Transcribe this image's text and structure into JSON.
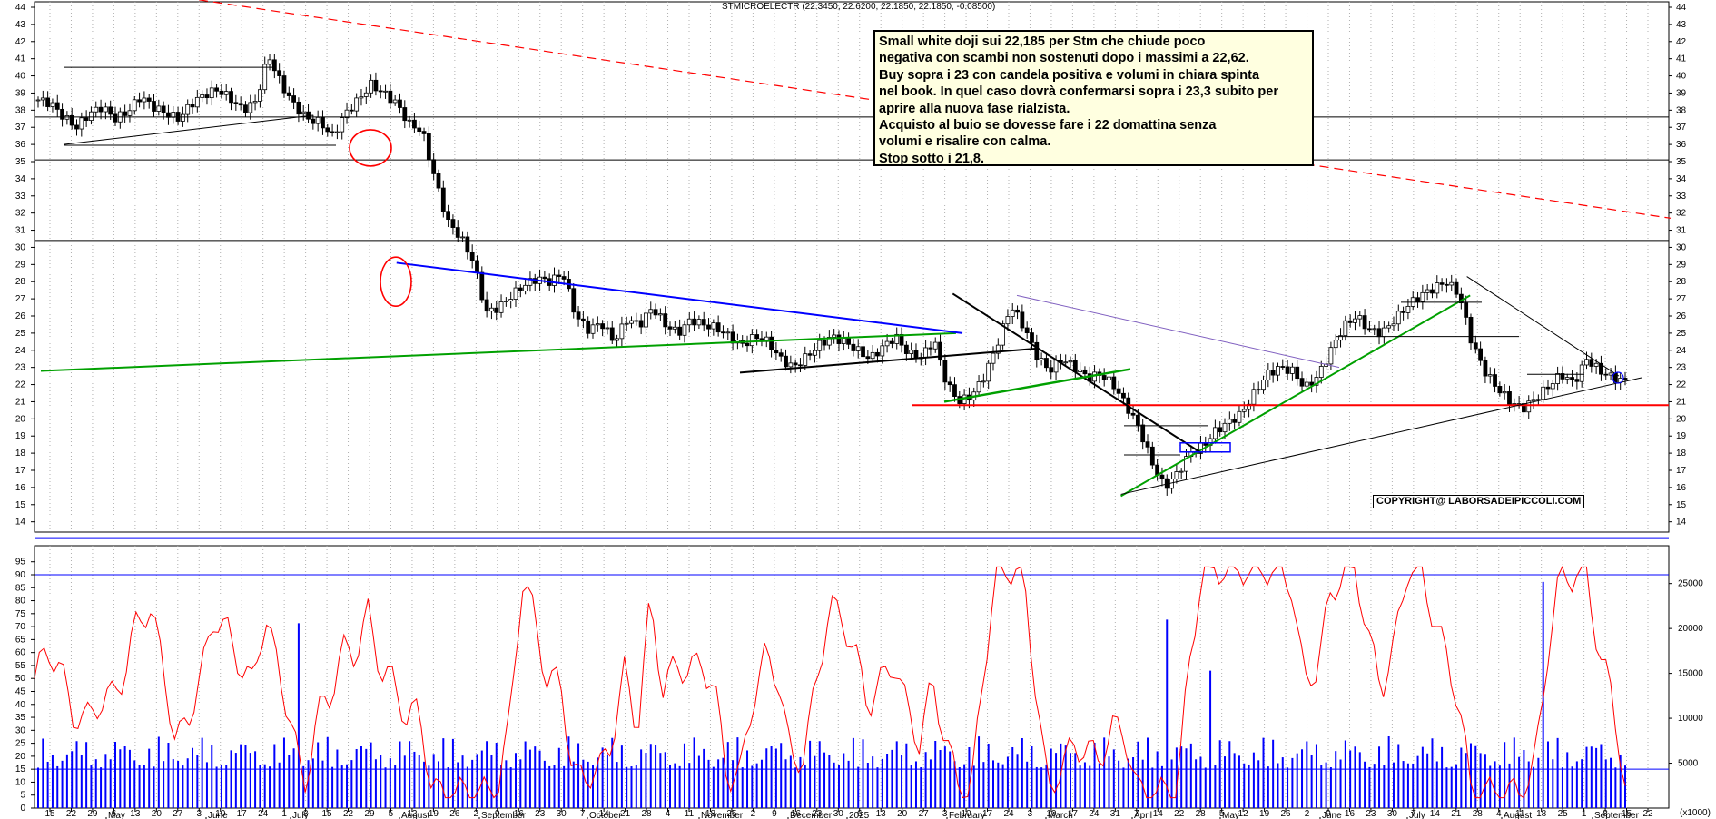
{
  "header": "STMICROELECTR (22.3450, 22.6200, 22.1850, 22.1850, -0.08500)",
  "annotation": [
    "Small white doji sui 22,185 per  Stm che chiude poco",
    "negativa con scambi non sostenuti dopo i massimi a 22,62.",
    "Buy sopra i 23 con candela positiva e volumi in chiara spinta",
    "nel book. In quel caso dovrà confermarsi sopra i 23,3 subito per",
    "aprire alla nuova fase rialzista.",
    "Acquisto al buio se dovesse fare i 22 domattina senza",
    "volumi e risalire con calma.",
    "Stop sotto i 21,8."
  ],
  "copyright": "COPYRIGHT@ LABORSADEIPICCOLI.COM",
  "colors": {
    "trend_red": "#ff0000",
    "blue": "#0000ff",
    "green": "#00a000",
    "black": "#000000",
    "purple": "#8060c0",
    "oscillator": "#ff0000",
    "volume": "#0000ff"
  },
  "chart_data": {
    "type": "candlestick",
    "price_axis": {
      "ticks": [
        14,
        15,
        16,
        17,
        18,
        19,
        20,
        21,
        22,
        23,
        24,
        25,
        26,
        27,
        28,
        29,
        30,
        31,
        32,
        33,
        34,
        35,
        36,
        37,
        38,
        39,
        40,
        41,
        42,
        43,
        44
      ],
      "range": [
        13.4,
        44
      ]
    },
    "oscillator_axis": {
      "ticks": [
        0,
        5,
        10,
        15,
        20,
        25,
        30,
        35,
        40,
        45,
        50,
        55,
        60,
        65,
        70,
        75,
        80,
        85,
        90,
        95
      ],
      "range": [
        0,
        97
      ]
    },
    "volume_axis": {
      "ticks": [
        "5000",
        "10000",
        "15000",
        "20000",
        "25000"
      ],
      "unit": "(x1000)",
      "range": [
        0,
        28000
      ]
    },
    "day_ticks": [
      "15",
      "22",
      "29",
      "6",
      "13",
      "20",
      "27",
      "3",
      "10",
      "17",
      "24",
      "1",
      "8",
      "15",
      "22",
      "29",
      "5",
      "12",
      "19",
      "26",
      "2",
      "9",
      "16",
      "23",
      "30",
      "7",
      "14",
      "21",
      "28",
      "4",
      "11",
      "18",
      "25",
      "2",
      "9",
      "16",
      "23",
      "30",
      "6",
      "13",
      "20",
      "27",
      "3",
      "10",
      "17",
      "24",
      "3",
      "10",
      "17",
      "24",
      "31",
      "7",
      "14",
      "22",
      "28",
      "5",
      "12",
      "19",
      "26",
      "2",
      "9",
      "16",
      "23",
      "30",
      "7",
      "14",
      "21",
      "28",
      "4",
      "11",
      "18",
      "25",
      "1",
      "8",
      "15",
      "22"
    ],
    "months": [
      "May",
      "June",
      "July",
      "August",
      "September",
      "October",
      "November",
      "December",
      "2025",
      "February",
      "March",
      "April",
      "May",
      "June",
      "July",
      "August",
      "September"
    ],
    "close_path": [
      38.6,
      38.4,
      37.6,
      37.0,
      37.8,
      38.2,
      37.5,
      37.9,
      38.8,
      38.2,
      37.8,
      37.5,
      38.4,
      38.9,
      39.2,
      38.7,
      38.0,
      38.5,
      41.2,
      39.5,
      38.3,
      37.5,
      37.3,
      36.5,
      37.8,
      38.6,
      39.5,
      39.0,
      38.4,
      37.2,
      36.8,
      34.0,
      31.5,
      30.6,
      29.2,
      26.2,
      26.5,
      27.2,
      27.8,
      28.2,
      28.0,
      28.5,
      26.0,
      25.2,
      25.6,
      24.5,
      25.8,
      25.5,
      26.5,
      25.5,
      25.0,
      25.8,
      25.5,
      25.3,
      24.8,
      24.3,
      24.8,
      24.5,
      23.5,
      23.0,
      23.6,
      24.3,
      24.8,
      24.5,
      24.0,
      23.5,
      24.2,
      24.8,
      23.8,
      23.6,
      24.6,
      22.0,
      21.0,
      21.4,
      22.6,
      24.5,
      26.6,
      25.4,
      23.7,
      22.8,
      23.5,
      23.0,
      22.4,
      22.6,
      22.0,
      20.8,
      19.5,
      17.5,
      16.0,
      16.8,
      18.0,
      18.4,
      19.3,
      19.8,
      20.3,
      21.5,
      22.6,
      23.0,
      22.8,
      21.8,
      22.5,
      24.0,
      25.4,
      26.0,
      25.2,
      25.0,
      25.8,
      26.6,
      27.2,
      27.6,
      28.0,
      27.3,
      24.5,
      22.8,
      21.8,
      21.0,
      20.6,
      21.2,
      21.9,
      22.6,
      22.1,
      23.5,
      22.8,
      22.4,
      22.2
    ],
    "volume_spikes": [
      {
        "index": 20,
        "value": 25000
      },
      {
        "index": 88,
        "value": 21000
      },
      {
        "index": 92,
        "value": 16000
      },
      {
        "index": 118,
        "value": 27000
      }
    ],
    "trendlines": [
      {
        "name": "long-term-downtrend",
        "color": "red",
        "dashed": true,
        "from": [
          "2024-05-08",
          45.8
        ],
        "to": [
          "2025-09-24",
          31.7
        ]
      },
      {
        "name": "horizontal-37.6",
        "color": "black",
        "level": 37.6
      },
      {
        "name": "horizontal-35.1",
        "color": "black",
        "level": 35.1
      },
      {
        "name": "horizontal-30.4",
        "color": "black",
        "level": 30.4
      },
      {
        "name": "horizontal-support-20.8",
        "color": "red",
        "level": 20.8
      },
      {
        "name": "horizontal-13.0",
        "color": "blue",
        "level": 13.05
      },
      {
        "name": "long-uptrend",
        "color": "green",
        "from": [
          "2024-05-08",
          22.8
        ],
        "to": [
          "2025-02-15",
          25.0
        ]
      },
      {
        "name": "channel-top",
        "color": "blue",
        "from": [
          "2024-08-26",
          29.1
        ],
        "to": [
          "2025-02-17",
          25.0
        ]
      },
      {
        "name": "april-low-uptrend",
        "color": "green",
        "from": [
          "2025-04-07",
          15.5
        ],
        "to": [
          "2025-07-24",
          27.2
        ]
      },
      {
        "name": "february-downtrend",
        "color": "black",
        "from": [
          "2025-02-14",
          27.3
        ],
        "to": [
          "2025-05-02",
          18.0
        ]
      },
      {
        "name": "triangle-top",
        "color": "black",
        "from": [
          "2025-07-23",
          28.3
        ],
        "to": [
          "2025-09-08",
          22.5
        ]
      },
      {
        "name": "triangle-bottom",
        "color": "black",
        "from": [
          "2025-04-07",
          15.6
        ],
        "to": [
          "2025-09-15",
          22.4
        ]
      }
    ]
  }
}
